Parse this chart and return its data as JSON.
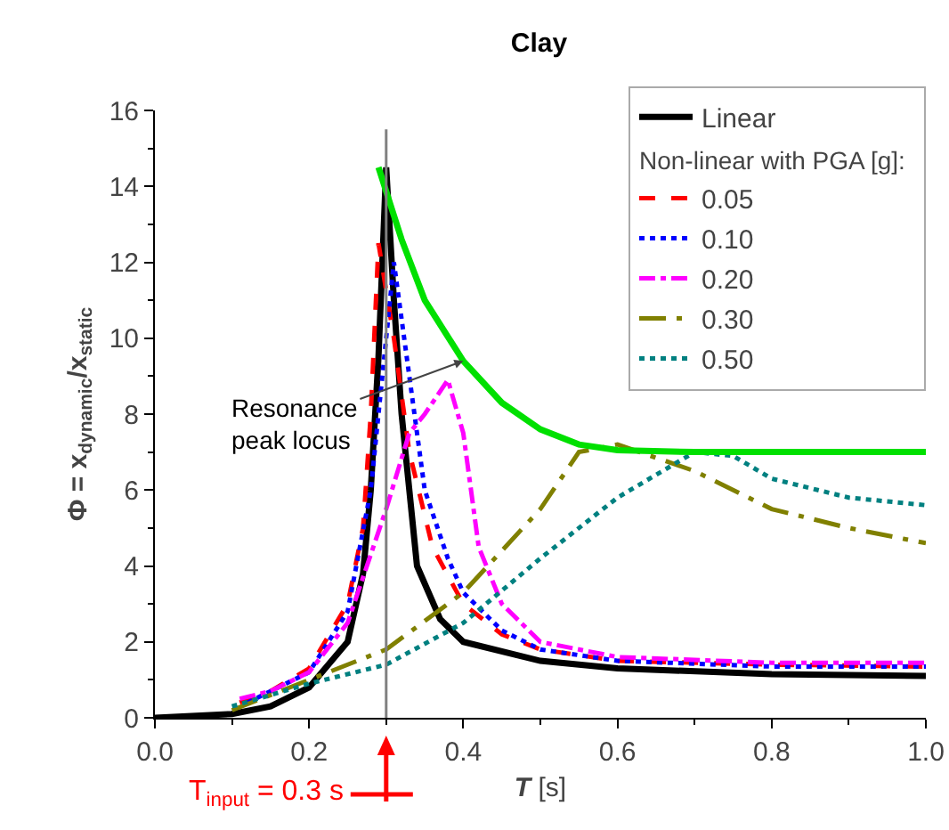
{
  "chart_data": {
    "type": "line",
    "title": "Clay",
    "xlabel": "T [s]",
    "ylabel": "Φ = x$_{dynamic}$/x$_{static}$",
    "legend_title": "Non-linear with PGA [g]:",
    "xlim": [
      0,
      1
    ],
    "xticks": [
      {
        "value": 0,
        "label": "0.0"
      },
      0.2,
      0.4,
      0.6,
      0.8,
      {
        "value": 1,
        "label": "1.0"
      }
    ],
    "ylim": [
      0,
      16
    ],
    "yticks": [
      0,
      2,
      4,
      6,
      8,
      10,
      12,
      14,
      16
    ],
    "grid": false,
    "legend": "top right",
    "marker": "none",
    "series": [
      {
        "name": "Linear",
        "color": "#000000",
        "line_style": "solid",
        "x": [
          0,
          0.1,
          0.15,
          0.2,
          0.25,
          0.27,
          0.28,
          0.29,
          0.3,
          0.31,
          0.32,
          0.34,
          0.37,
          0.4,
          0.5,
          0.6,
          0.8,
          1.0
        ],
        "values": [
          0,
          0.1,
          0.3,
          0.8,
          2,
          3.8,
          6,
          9.5,
          14.5,
          11,
          8,
          4,
          2.6,
          2,
          1.5,
          1.3,
          1.15,
          1.1
        ]
      },
      {
        "name": "0.05",
        "color": "#ff0000",
        "line_style": "dash",
        "x": [
          0.11,
          0.15,
          0.2,
          0.25,
          0.27,
          0.28,
          0.29,
          0.31,
          0.33,
          0.36,
          0.4,
          0.45,
          0.5,
          0.6,
          0.8,
          1.0
        ],
        "values": [
          0.4,
          0.7,
          1.3,
          3,
          5,
          8,
          12.5,
          10,
          7,
          4.5,
          3,
          2.2,
          1.8,
          1.5,
          1.4,
          1.35
        ]
      },
      {
        "name": "0.10",
        "color": "#0000ff",
        "line_style": "dot",
        "x": [
          0.12,
          0.15,
          0.2,
          0.25,
          0.28,
          0.3,
          0.31,
          0.33,
          0.35,
          0.38,
          0.4,
          0.45,
          0.5,
          0.6,
          0.8,
          1.0
        ],
        "values": [
          0.4,
          0.7,
          1.2,
          2.8,
          6,
          10,
          12,
          9,
          6,
          4.2,
          3.3,
          2.3,
          1.8,
          1.5,
          1.35,
          1.35
        ]
      },
      {
        "name": "0.20",
        "color": "#ff00ff",
        "line_style": "dashdot",
        "x": [
          0.11,
          0.15,
          0.2,
          0.25,
          0.3,
          0.33,
          0.35,
          0.38,
          0.4,
          0.42,
          0.45,
          0.5,
          0.6,
          0.8,
          1.0
        ],
        "values": [
          0.5,
          0.7,
          1.2,
          2.5,
          5.5,
          7.5,
          8,
          8.9,
          7.5,
          4.5,
          3,
          2,
          1.6,
          1.45,
          1.45
        ]
      },
      {
        "name": "0.30",
        "color": "#808000",
        "line_style": "longdashdot",
        "x": [
          0.1,
          0.2,
          0.3,
          0.4,
          0.5,
          0.55,
          0.6,
          0.7,
          0.8,
          0.9,
          1.0
        ],
        "values": [
          0.2,
          1,
          1.8,
          3.3,
          5.5,
          7,
          7.2,
          6.5,
          5.5,
          5,
          4.6
        ]
      },
      {
        "name": "0.50",
        "color": "#008080",
        "line_style": "shortdash",
        "x": [
          0.1,
          0.2,
          0.3,
          0.4,
          0.5,
          0.6,
          0.7,
          0.75,
          0.8,
          0.9,
          1.0
        ],
        "values": [
          0.3,
          0.9,
          1.4,
          2.5,
          4.2,
          5.8,
          7,
          6.9,
          6.3,
          5.8,
          5.6
        ]
      },
      {
        "color": "#00e000",
        "line_style": "solid",
        "x": [
          0.29,
          0.32,
          0.35,
          0.4,
          0.45,
          0.5,
          0.55,
          0.6,
          0.7,
          0.8,
          1.0
        ],
        "values": [
          14.5,
          12.6,
          11,
          9.4,
          8.3,
          7.6,
          7.2,
          7.05,
          7,
          7,
          7
        ]
      }
    ],
    "ref_lines": [
      {
        "axis": "x",
        "value": 0.3,
        "label": "T$_{input}$ = 0.3 s",
        "color": "#808080"
      }
    ],
    "annotations": [
      {
        "text": "Resonance peak locus",
        "x": 0.4,
        "y": 9.4
      }
    ]
  }
}
